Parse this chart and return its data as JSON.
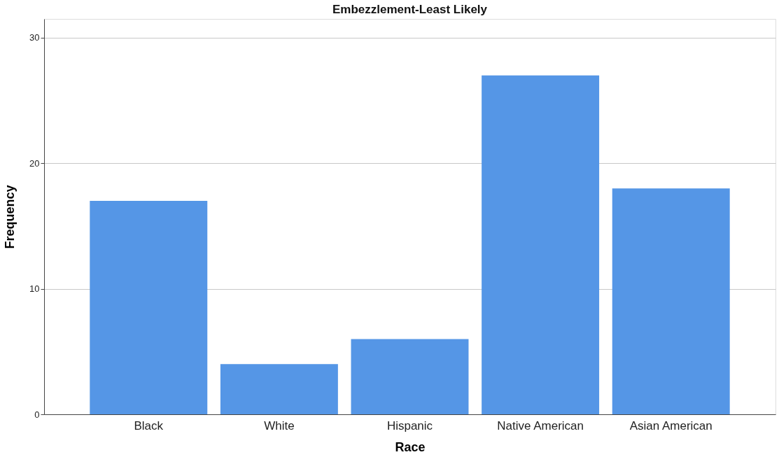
{
  "chart_data": {
    "type": "bar",
    "title": "Embezzlement-Least Likely",
    "xlabel": "Race",
    "ylabel": "Frequency",
    "categories": [
      "Black",
      "White",
      "Hispanic",
      "Native American",
      "Asian American"
    ],
    "values": [
      17,
      4,
      6,
      27,
      18
    ],
    "color": "#5596e6",
    "ylim": [
      0,
      31.5
    ],
    "yticks": [
      0,
      10,
      20,
      30
    ],
    "grid": "y"
  }
}
